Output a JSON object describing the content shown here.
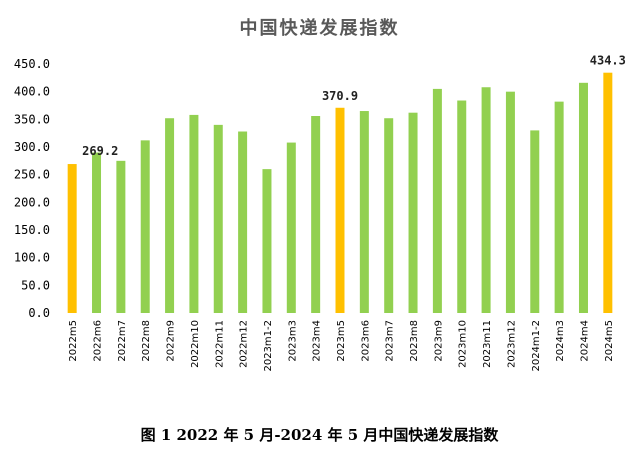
{
  "chart_data": {
    "type": "bar",
    "title": "中国快递发展指数",
    "caption": "图 1 2022 年 5 月-2024 年 5 月中国快递发展指数",
    "categories": [
      "2022m5",
      "2022m6",
      "2022m7",
      "2022m8",
      "2022m9",
      "2022m10",
      "2022m11",
      "2022m12",
      "2023m1-2",
      "2023m3",
      "2023m4",
      "2023m5",
      "2023m6",
      "2023m7",
      "2023m8",
      "2023m9",
      "2023m10",
      "2023m11",
      "2023m12",
      "2024m1-2",
      "2024m3",
      "2024m4",
      "2024m5"
    ],
    "values": [
      269.2,
      290,
      275,
      312,
      352,
      358,
      340,
      328,
      260,
      308,
      356,
      370.9,
      365,
      352,
      362,
      405,
      384,
      408,
      400,
      330,
      382,
      416,
      434.3
    ],
    "highlight_indices": [
      0,
      11,
      22
    ],
    "data_labels": [
      {
        "index": 0,
        "text": "269.2"
      },
      {
        "index": 11,
        "text": "370.9"
      },
      {
        "index": 22,
        "text": "434.3"
      }
    ],
    "ylim": [
      0,
      450
    ],
    "yticks": [
      "0.0",
      "50.0",
      "100.0",
      "150.0",
      "200.0",
      "250.0",
      "300.0",
      "350.0",
      "400.0",
      "450.0"
    ],
    "ytick_values": [
      0,
      50,
      100,
      150,
      200,
      250,
      300,
      350,
      400,
      450
    ],
    "grid": false,
    "xlabel": "",
    "ylabel": "",
    "colors": {
      "normal": "#92D050",
      "highlight": "#FFC000"
    }
  }
}
